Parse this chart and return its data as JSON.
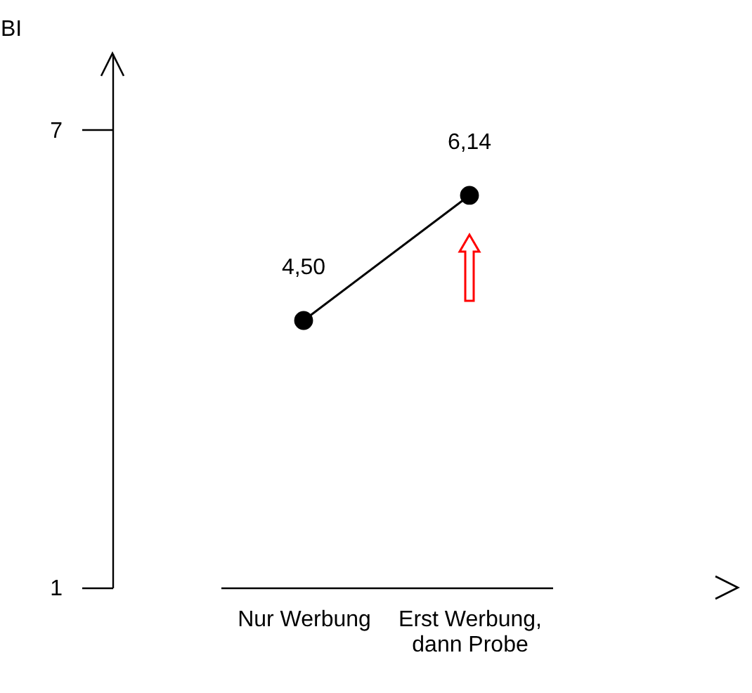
{
  "chart_data": {
    "type": "line",
    "ylabel": "BI",
    "categories": [
      "Nur Werbung",
      "Erst Werbung, dann Probe"
    ],
    "series": [
      {
        "color": "#000000",
        "values": [
          4.5,
          6.14
        ],
        "value_labels": [
          "4,50",
          "6,14"
        ]
      }
    ],
    "ylim": [
      1,
      8
    ],
    "yticks": [
      1,
      7
    ],
    "grid": false,
    "legend": false,
    "marker": "circle",
    "line_style": "solid"
  }
}
